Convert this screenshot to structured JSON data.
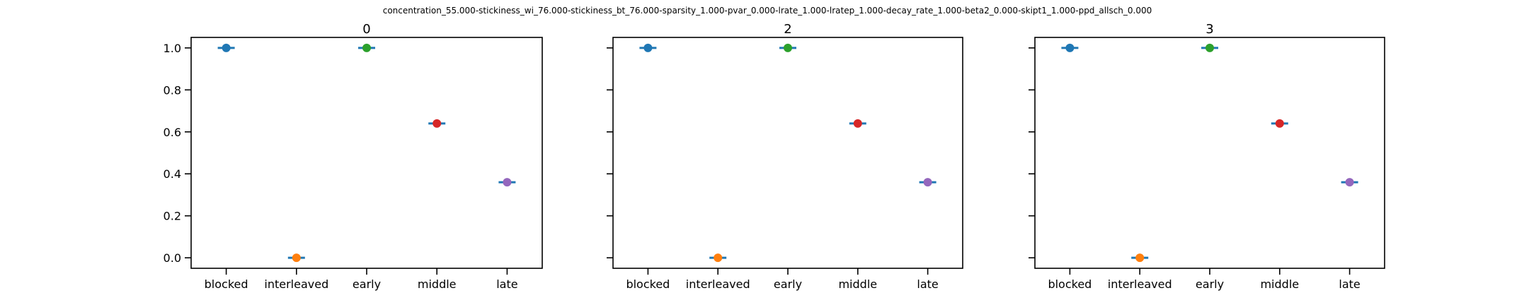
{
  "figure": {
    "suptitle": "concentration_55.000-stickiness_wi_76.000-stickiness_bt_76.000-sparsity_1.000-pvar_0.000-lrate_1.000-lratep_1.000-decay_rate_1.000-beta2_0.000-skipt1_1.000-ppd_allsch_0.000"
  },
  "chart_data": [
    {
      "type": "scatter",
      "title": "0",
      "categories": [
        "blocked",
        "interleaved",
        "early",
        "middle",
        "late"
      ],
      "values": [
        1.0,
        0.0,
        1.0,
        0.64,
        0.36
      ],
      "error_bar_color": "#1f77b4",
      "point_colors": [
        "#1f77b4",
        "#ff7f0e",
        "#2ca02c",
        "#d62728",
        "#9467bd"
      ],
      "ylim": [
        -0.05,
        1.05
      ],
      "yticks": [
        "0.0",
        "0.2",
        "0.4",
        "0.6",
        "0.8",
        "1.0"
      ],
      "show_ytick_labels": true,
      "xlabel": "",
      "ylabel": ""
    },
    {
      "type": "scatter",
      "title": "2",
      "categories": [
        "blocked",
        "interleaved",
        "early",
        "middle",
        "late"
      ],
      "values": [
        1.0,
        0.0,
        1.0,
        0.64,
        0.36
      ],
      "error_bar_color": "#1f77b4",
      "point_colors": [
        "#1f77b4",
        "#ff7f0e",
        "#2ca02c",
        "#d62728",
        "#9467bd"
      ],
      "ylim": [
        -0.05,
        1.05
      ],
      "yticks": [
        "0.0",
        "0.2",
        "0.4",
        "0.6",
        "0.8",
        "1.0"
      ],
      "show_ytick_labels": false,
      "xlabel": "",
      "ylabel": ""
    },
    {
      "type": "scatter",
      "title": "3",
      "categories": [
        "blocked",
        "interleaved",
        "early",
        "middle",
        "late"
      ],
      "values": [
        1.0,
        0.0,
        1.0,
        0.64,
        0.36
      ],
      "error_bar_color": "#1f77b4",
      "point_colors": [
        "#1f77b4",
        "#ff7f0e",
        "#2ca02c",
        "#d62728",
        "#9467bd"
      ],
      "ylim": [
        -0.05,
        1.05
      ],
      "yticks": [
        "0.0",
        "0.2",
        "0.4",
        "0.6",
        "0.8",
        "1.0"
      ],
      "show_ytick_labels": false,
      "xlabel": "",
      "ylabel": ""
    }
  ]
}
